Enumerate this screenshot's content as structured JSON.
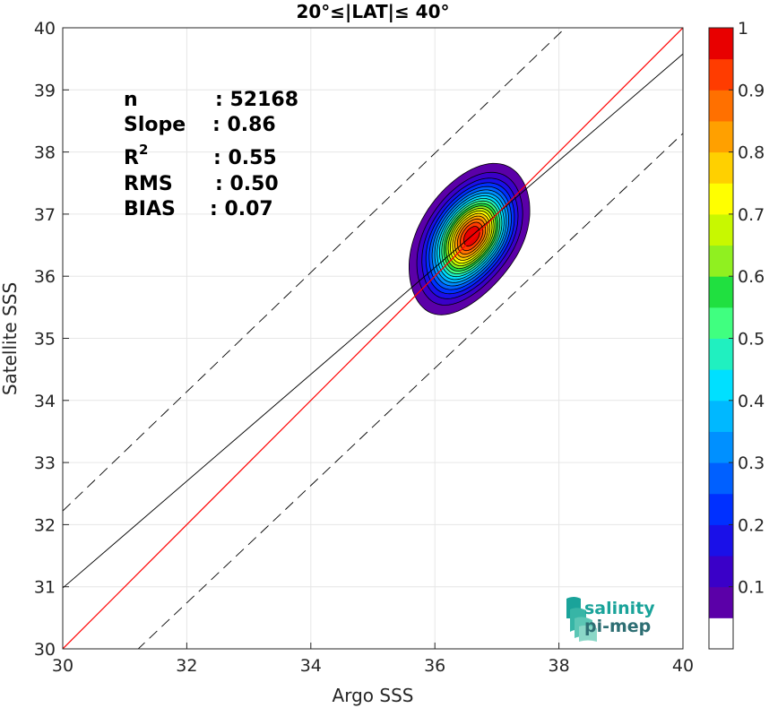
{
  "chart_data": {
    "type": "contour",
    "title": "20°≤|LAT|≤ 40°",
    "xlabel": "Argo SSS",
    "ylabel": "Satellite SSS",
    "xlim": [
      30,
      40
    ],
    "ylim": [
      30,
      40
    ],
    "xticks": [
      "30",
      "32",
      "34",
      "36",
      "38",
      "40"
    ],
    "yticks": [
      "30",
      "31",
      "32",
      "33",
      "34",
      "35",
      "36",
      "37",
      "38",
      "39",
      "40"
    ],
    "grid": true,
    "stats": [
      {
        "label": "n",
        "value": ": 52168"
      },
      {
        "label": "Slope",
        "value": ": 0.86"
      },
      {
        "label": "R",
        "sup": "2",
        "value": ": 0.55"
      },
      {
        "label": "RMS",
        "value": ": 0.50"
      },
      {
        "label": "BIAS",
        "value": ": 0.07"
      }
    ],
    "lines": {
      "identity": {
        "x": [
          30,
          40
        ],
        "y": [
          30,
          40
        ],
        "color": "#ff0000"
      },
      "fit": {
        "x": [
          30,
          40
        ],
        "y": [
          30.98,
          39.58
        ],
        "color": "#000000"
      },
      "upper_bound": {
        "x": [
          30,
          40
        ],
        "y": [
          32.22,
          41.82
        ],
        "style": "dashed"
      },
      "lower_bound": {
        "x": [
          30,
          40
        ],
        "y": [
          28.85,
          38.3
        ],
        "style": "dashed"
      }
    },
    "density": {
      "center": [
        36.6,
        36.65
      ],
      "slope": 1.45,
      "base_level": 0.05,
      "outer_extent": {
        "along": [
          -1.4,
          1.25
        ],
        "perp": 0.78
      }
    },
    "colorbar": {
      "range": [
        0,
        1
      ],
      "ticks": [
        "0.1",
        "0.2",
        "0.3",
        "0.4",
        "0.5",
        "0.6",
        "0.7",
        "0.8",
        "0.9",
        "1"
      ],
      "levels": [
        0,
        0.05,
        0.1,
        0.15,
        0.2,
        0.25,
        0.3,
        0.35,
        0.4,
        0.45,
        0.5,
        0.55,
        0.6,
        0.65,
        0.7,
        0.75,
        0.8,
        0.85,
        0.9,
        0.95,
        1
      ],
      "colors": [
        "#ffffff",
        "#5b00a8",
        "#3a00c8",
        "#1a10e8",
        "#0030ff",
        "#0060ff",
        "#0090ff",
        "#00b8ff",
        "#00e0ff",
        "#20f0c0",
        "#40ff80",
        "#20e040",
        "#90f020",
        "#c8f800",
        "#ffff00",
        "#ffd000",
        "#ffa000",
        "#ff7000",
        "#ff3c00",
        "#e80000",
        "#8c0000"
      ]
    }
  },
  "logo": {
    "line1": "salinity",
    "line2": "pi-mep"
  }
}
